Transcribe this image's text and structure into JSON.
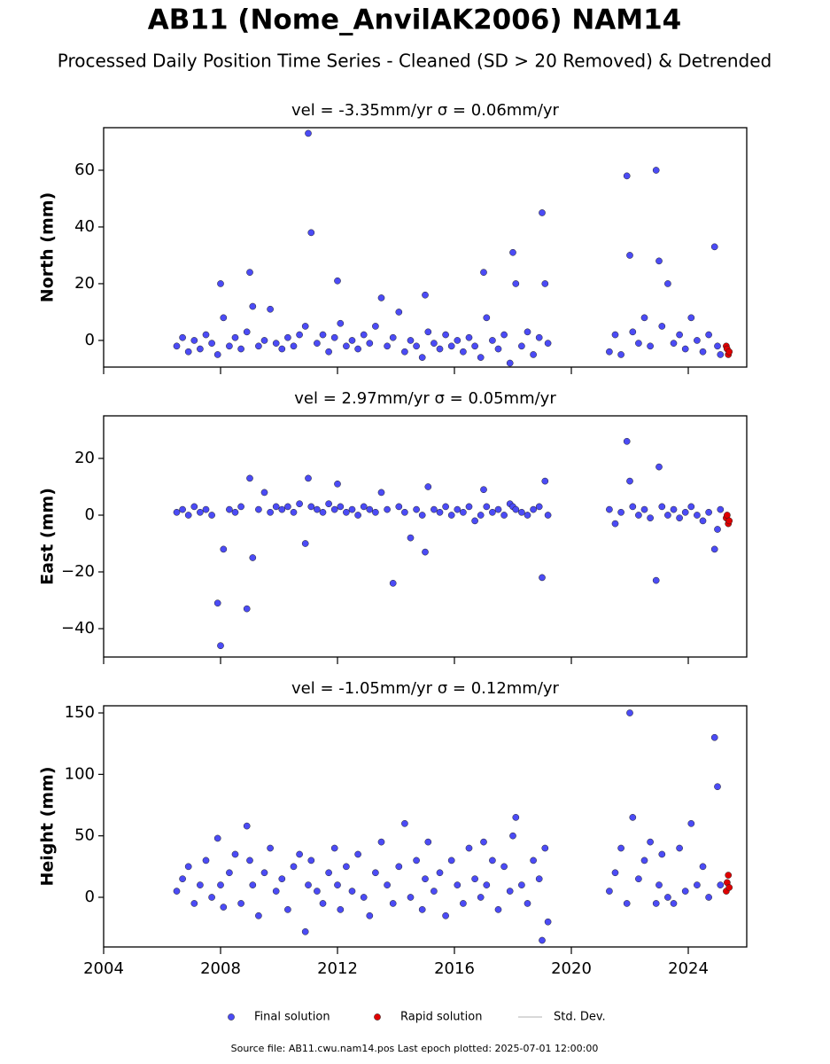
{
  "title": "AB11 (Nome_AnvilAK2006) NAM14",
  "subtitle": "Processed Daily Position Time Series - Cleaned (SD > 20 Removed) & Detrended",
  "footer": "Source file: AB11.cwu.nam14.pos  Last epoch plotted: 2025-07-01 12:00:00",
  "std_dev_legend": {
    "name": "Std. Dev.",
    "color": "#cccccc"
  },
  "chart_data": [
    {
      "type": "scatter",
      "title": "vel = -3.35mm/yr   σ = 0.06mm/yr",
      "ylabel": "North (mm)",
      "xlim": [
        2004,
        2026
      ],
      "xticks": [
        2004,
        2008,
        2012,
        2016,
        2020,
        2024
      ],
      "show_xticklabels": false,
      "ylim": [
        -9.4,
        75
      ],
      "yticks": [
        0,
        20,
        40,
        60
      ],
      "series": [
        {
          "name": "Final solution",
          "color": "#4b4bf5",
          "x": [
            2006.5,
            2006.7,
            2006.9,
            2007.1,
            2007.3,
            2007.5,
            2007.7,
            2007.9,
            2008.0,
            2008.1,
            2008.3,
            2008.5,
            2008.7,
            2008.9,
            2009.0,
            2009.1,
            2009.3,
            2009.5,
            2009.7,
            2009.9,
            2010.1,
            2010.3,
            2010.5,
            2010.7,
            2010.9,
            2011.0,
            2011.1,
            2011.3,
            2011.5,
            2011.7,
            2011.9,
            2012.0,
            2012.1,
            2012.3,
            2012.5,
            2012.7,
            2012.9,
            2013.1,
            2013.3,
            2013.5,
            2013.7,
            2013.9,
            2014.1,
            2014.3,
            2014.5,
            2014.7,
            2014.9,
            2015.0,
            2015.1,
            2015.3,
            2015.5,
            2015.7,
            2015.9,
            2016.1,
            2016.3,
            2016.5,
            2016.7,
            2016.9,
            2017.0,
            2017.1,
            2017.3,
            2017.5,
            2017.7,
            2017.9,
            2018.0,
            2018.1,
            2018.3,
            2018.5,
            2018.7,
            2018.9,
            2019.0,
            2019.1,
            2019.2,
            2021.3,
            2021.5,
            2021.7,
            2021.9,
            2022.0,
            2022.1,
            2022.3,
            2022.5,
            2022.7,
            2022.9,
            2023.0,
            2023.1,
            2023.3,
            2023.5,
            2023.7,
            2023.9,
            2024.1,
            2024.3,
            2024.5,
            2024.7,
            2024.9,
            2025.0,
            2025.1
          ],
          "values": [
            -2,
            1,
            -4,
            0,
            -3,
            2,
            -1,
            -5,
            20,
            8,
            -2,
            1,
            -3,
            3,
            24,
            12,
            -2,
            0,
            11,
            -1,
            -3,
            1,
            -2,
            2,
            5,
            73,
            38,
            -1,
            2,
            -4,
            1,
            21,
            6,
            -2,
            0,
            -3,
            2,
            -1,
            5,
            15,
            -2,
            1,
            10,
            -4,
            0,
            -2,
            -6,
            16,
            3,
            -1,
            -3,
            2,
            -2,
            0,
            -4,
            1,
            -2,
            -6,
            24,
            8,
            0,
            -3,
            2,
            -8,
            31,
            20,
            -2,
            3,
            -5,
            1,
            45,
            20,
            -1,
            -4,
            2,
            -5,
            58,
            30,
            3,
            -1,
            8,
            -2,
            60,
            28,
            5,
            20,
            -1,
            2,
            -3,
            8,
            0,
            -4,
            2,
            33,
            -2,
            -5
          ]
        },
        {
          "name": "Rapid solution",
          "color": "#e00000",
          "x": [
            2025.3,
            2025.33,
            2025.37,
            2025.4
          ],
          "values": [
            -2,
            -3,
            -5,
            -4
          ]
        }
      ]
    },
    {
      "type": "scatter",
      "title": "vel = 2.97mm/yr   σ = 0.05mm/yr",
      "ylabel": "East (mm)",
      "xlim": [
        2004,
        2026
      ],
      "xticks": [
        2004,
        2008,
        2012,
        2016,
        2020,
        2024
      ],
      "show_xticklabels": false,
      "ylim": [
        -50,
        35
      ],
      "yticks": [
        {
          "value": -40,
          "label": "−40"
        },
        {
          "value": -20,
          "label": "−20"
        },
        0,
        20
      ],
      "series": [
        {
          "name": "Final solution",
          "color": "#4b4bf5",
          "x": [
            2006.5,
            2006.7,
            2006.9,
            2007.1,
            2007.3,
            2007.5,
            2007.7,
            2007.9,
            2008.0,
            2008.1,
            2008.3,
            2008.5,
            2008.7,
            2008.9,
            2009.0,
            2009.1,
            2009.3,
            2009.5,
            2009.7,
            2009.9,
            2010.1,
            2010.3,
            2010.5,
            2010.7,
            2010.9,
            2011.0,
            2011.1,
            2011.3,
            2011.5,
            2011.7,
            2011.9,
            2012.0,
            2012.1,
            2012.3,
            2012.5,
            2012.7,
            2012.9,
            2013.1,
            2013.3,
            2013.5,
            2013.7,
            2013.9,
            2014.1,
            2014.3,
            2014.5,
            2014.7,
            2014.9,
            2015.0,
            2015.1,
            2015.3,
            2015.5,
            2015.7,
            2015.9,
            2016.1,
            2016.3,
            2016.5,
            2016.7,
            2016.9,
            2017.0,
            2017.1,
            2017.3,
            2017.5,
            2017.7,
            2017.9,
            2018.0,
            2018.1,
            2018.3,
            2018.5,
            2018.7,
            2018.9,
            2019.0,
            2019.1,
            2019.2,
            2021.3,
            2021.5,
            2021.7,
            2021.9,
            2022.0,
            2022.1,
            2022.3,
            2022.5,
            2022.7,
            2022.9,
            2023.0,
            2023.1,
            2023.3,
            2023.5,
            2023.7,
            2023.9,
            2024.1,
            2024.3,
            2024.5,
            2024.7,
            2024.9,
            2025.0,
            2025.1
          ],
          "values": [
            1,
            2,
            0,
            3,
            1,
            2,
            0,
            -31,
            -46,
            -12,
            2,
            1,
            3,
            -33,
            13,
            -15,
            2,
            8,
            1,
            3,
            2,
            3,
            1,
            4,
            -10,
            13,
            3,
            2,
            1,
            4,
            2,
            11,
            3,
            1,
            2,
            0,
            3,
            2,
            1,
            8,
            2,
            -24,
            3,
            1,
            -8,
            2,
            0,
            -13,
            10,
            2,
            1,
            3,
            0,
            2,
            1,
            3,
            -2,
            0,
            9,
            3,
            1,
            2,
            0,
            4,
            3,
            2,
            1,
            0,
            2,
            3,
            -22,
            12,
            0,
            2,
            -3,
            1,
            26,
            12,
            3,
            0,
            2,
            -1,
            -23,
            17,
            3,
            0,
            2,
            -1,
            1,
            3,
            0,
            -2,
            1,
            -12,
            -5,
            2
          ]
        },
        {
          "name": "Rapid solution",
          "color": "#e00000",
          "x": [
            2025.3,
            2025.33,
            2025.37,
            2025.4
          ],
          "values": [
            -1,
            0,
            -3,
            -2
          ]
        }
      ]
    },
    {
      "type": "scatter",
      "title": "vel = -1.05mm/yr   σ = 0.12mm/yr",
      "ylabel": "Height (mm)",
      "xlim": [
        2004,
        2026
      ],
      "xticks": [
        2004,
        2008,
        2012,
        2016,
        2020,
        2024
      ],
      "show_xticklabels": true,
      "ylim": [
        -40.4,
        155.8
      ],
      "yticks": [
        0,
        50,
        100,
        150
      ],
      "series": [
        {
          "name": "Final solution",
          "color": "#4b4bf5",
          "x": [
            2006.5,
            2006.7,
            2006.9,
            2007.1,
            2007.3,
            2007.5,
            2007.7,
            2007.9,
            2008.0,
            2008.1,
            2008.3,
            2008.5,
            2008.7,
            2008.9,
            2009.0,
            2009.1,
            2009.3,
            2009.5,
            2009.7,
            2009.9,
            2010.1,
            2010.3,
            2010.5,
            2010.7,
            2010.9,
            2011.0,
            2011.1,
            2011.3,
            2011.5,
            2011.7,
            2011.9,
            2012.0,
            2012.1,
            2012.3,
            2012.5,
            2012.7,
            2012.9,
            2013.1,
            2013.3,
            2013.5,
            2013.7,
            2013.9,
            2014.1,
            2014.3,
            2014.5,
            2014.7,
            2014.9,
            2015.0,
            2015.1,
            2015.3,
            2015.5,
            2015.7,
            2015.9,
            2016.1,
            2016.3,
            2016.5,
            2016.7,
            2016.9,
            2017.0,
            2017.1,
            2017.3,
            2017.5,
            2017.7,
            2017.9,
            2018.0,
            2018.1,
            2018.3,
            2018.5,
            2018.7,
            2018.9,
            2019.0,
            2019.1,
            2019.2,
            2021.3,
            2021.5,
            2021.7,
            2021.9,
            2022.0,
            2022.1,
            2022.3,
            2022.5,
            2022.7,
            2022.9,
            2023.0,
            2023.1,
            2023.3,
            2023.5,
            2023.7,
            2023.9,
            2024.1,
            2024.3,
            2024.5,
            2024.7,
            2024.9,
            2025.0,
            2025.1
          ],
          "values": [
            5,
            15,
            25,
            -5,
            10,
            30,
            0,
            48,
            10,
            -8,
            20,
            35,
            -5,
            58,
            30,
            10,
            -15,
            20,
            40,
            5,
            15,
            -10,
            25,
            35,
            -28,
            10,
            30,
            5,
            -5,
            20,
            40,
            10,
            -10,
            25,
            5,
            35,
            0,
            -15,
            20,
            45,
            10,
            -5,
            25,
            60,
            0,
            30,
            -10,
            15,
            45,
            5,
            20,
            -15,
            30,
            10,
            -5,
            40,
            15,
            0,
            45,
            10,
            30,
            -10,
            25,
            5,
            50,
            65,
            10,
            -5,
            30,
            15,
            -35,
            40,
            -20,
            5,
            20,
            40,
            -5,
            150,
            65,
            15,
            30,
            45,
            -5,
            10,
            35,
            0,
            -5,
            40,
            5,
            60,
            10,
            25,
            0,
            130,
            90,
            10
          ]
        },
        {
          "name": "Rapid solution",
          "color": "#e00000",
          "x": [
            2025.3,
            2025.33,
            2025.37,
            2025.4
          ],
          "values": [
            5,
            12,
            18,
            8
          ]
        }
      ]
    }
  ]
}
